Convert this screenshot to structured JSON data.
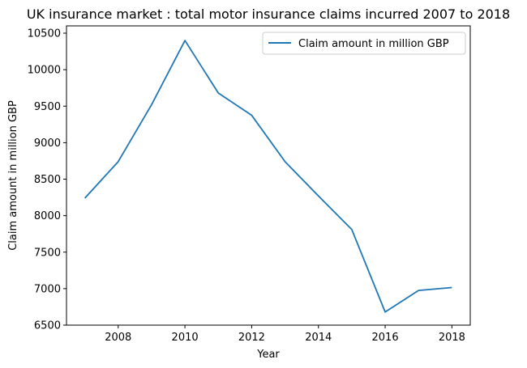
{
  "chart_data": {
    "type": "line",
    "title": "UK insurance market : total motor insurance claims incurred 2007 to 2018",
    "xlabel": "Year",
    "ylabel": "Claim amount in million GBP",
    "x": [
      2007,
      2008,
      2009,
      2010,
      2011,
      2012,
      2013,
      2014,
      2015,
      2016,
      2017,
      2018
    ],
    "series": [
      {
        "name": "Claim amount in million GBP",
        "color": "#1f77b4",
        "values": [
          8240,
          8740,
          9520,
          10400,
          9680,
          9375,
          8740,
          8270,
          7810,
          6680,
          6975,
          7015
        ]
      }
    ],
    "xlim": [
      2006.45,
      2018.55
    ],
    "ylim": [
      6500,
      10600
    ],
    "xticks": [
      2008,
      2010,
      2012,
      2014,
      2016,
      2018
    ],
    "yticks": [
      6500,
      7000,
      7500,
      8000,
      8500,
      9000,
      9500,
      10000,
      10500
    ],
    "grid": false,
    "legend_position": "top-right"
  }
}
